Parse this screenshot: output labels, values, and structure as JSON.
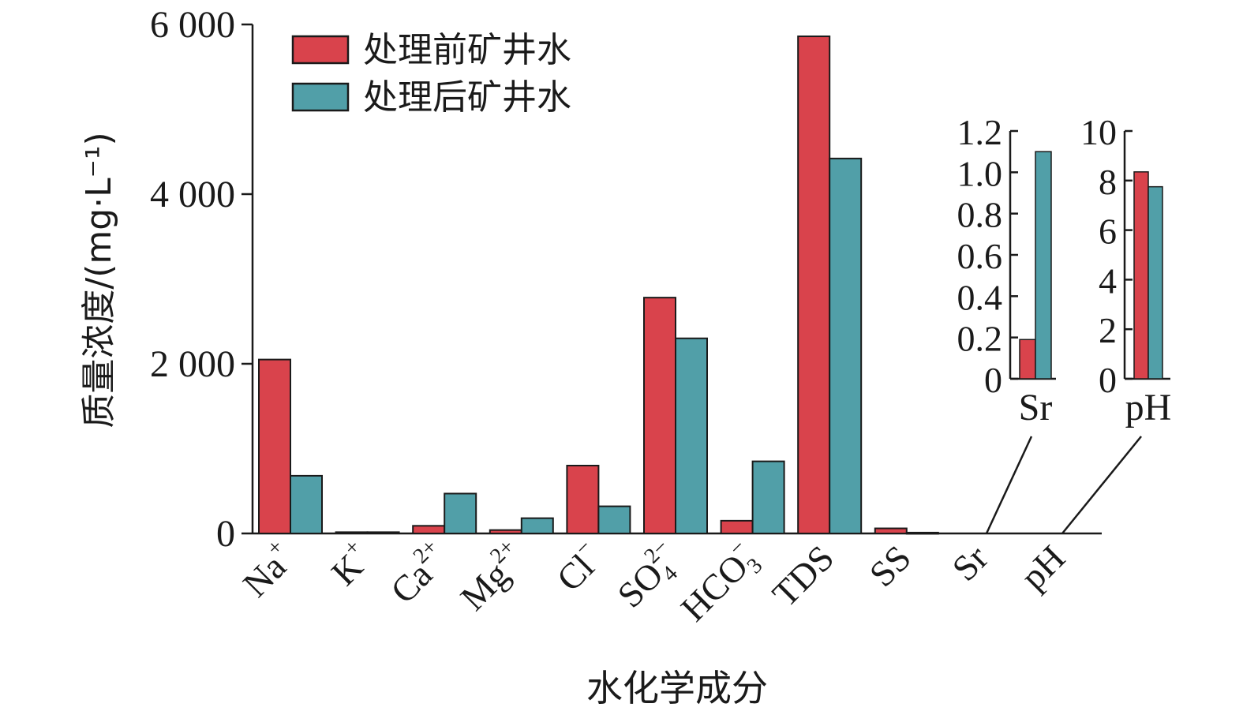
{
  "chart_data": [
    {
      "type": "bar",
      "xlabel": "水化学成分",
      "ylabel": "质量浓度/(mg·L⁻¹)",
      "ylim": [
        0,
        6000
      ],
      "yticks": [
        0,
        2000,
        4000,
        6000
      ],
      "ytick_labels": [
        "0",
        "2 000",
        "4 000",
        "6 000"
      ],
      "categories": [
        {
          "base": "Na",
          "sup": "+",
          "sub": ""
        },
        {
          "base": "K",
          "sup": "+",
          "sub": ""
        },
        {
          "base": "Ca",
          "sup": "2+",
          "sub": ""
        },
        {
          "base": "Mg",
          "sup": "2+",
          "sub": ""
        },
        {
          "base": "Cl",
          "sup": "−",
          "sub": ""
        },
        {
          "base": "SO",
          "sup": "2−",
          "sub": "4"
        },
        {
          "base": "HCO",
          "sup": "−",
          "sub": "3"
        },
        {
          "base": "TDS",
          "sup": "",
          "sub": ""
        },
        {
          "base": "SS",
          "sup": "",
          "sub": ""
        },
        {
          "base": "Sr",
          "sup": "",
          "sub": ""
        },
        {
          "base": "pH",
          "sup": "",
          "sub": ""
        }
      ],
      "series": [
        {
          "name": "处理前矿井水",
          "values": [
            2050,
            15,
            90,
            40,
            800,
            2780,
            150,
            5860,
            60,
            null,
            null
          ]
        },
        {
          "name": "处理后矿井水",
          "values": [
            680,
            15,
            470,
            180,
            320,
            2300,
            850,
            4420,
            10,
            null,
            null
          ]
        }
      ],
      "legend": "top-left",
      "grid": false
    },
    {
      "type": "bar",
      "inset": true,
      "categories": [
        "Sr"
      ],
      "ylim": [
        0,
        1.2
      ],
      "yticks": [
        0,
        0.2,
        0.4,
        0.6,
        0.8,
        1.0,
        1.2
      ],
      "ytick_labels": [
        "0",
        "0.2",
        "0.4",
        "0.6",
        "0.8",
        "1.0",
        "1.2"
      ],
      "series": [
        {
          "name": "处理前矿井水",
          "values": [
            0.19
          ]
        },
        {
          "name": "处理后矿井水",
          "values": [
            1.1
          ]
        }
      ]
    },
    {
      "type": "bar",
      "inset": true,
      "categories": [
        "pH"
      ],
      "ylim": [
        0,
        10
      ],
      "yticks": [
        0,
        2,
        4,
        6,
        8,
        10
      ],
      "ytick_labels": [
        "0",
        "2",
        "4",
        "6",
        "8",
        "10"
      ],
      "series": [
        {
          "name": "处理前矿井水",
          "values": [
            8.35
          ]
        },
        {
          "name": "处理后矿井水",
          "values": [
            7.75
          ]
        }
      ]
    }
  ],
  "colors": {
    "before": "#d9434c",
    "after": "#519fa8",
    "axis": "#1a1a1a"
  }
}
